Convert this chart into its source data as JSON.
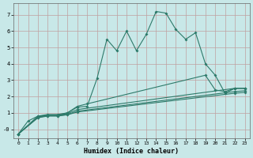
{
  "xlabel": "Humidex (Indice chaleur)",
  "bg_color": "#c8e8e8",
  "line_color": "#2d7a6a",
  "grid_color": "#c0a0a0",
  "xlim": [
    -0.5,
    23.5
  ],
  "ylim": [
    -0.55,
    7.7
  ],
  "xticks": [
    0,
    1,
    2,
    3,
    4,
    5,
    6,
    7,
    8,
    9,
    10,
    11,
    12,
    13,
    14,
    15,
    16,
    17,
    18,
    19,
    20,
    21,
    22,
    23
  ],
  "yticks": [
    0,
    1,
    2,
    3,
    4,
    5,
    6,
    7
  ],
  "ytick_labels": [
    "-0",
    "1",
    "2",
    "3",
    "4",
    "5",
    "6",
    "7"
  ],
  "lines": [
    {
      "x": [
        0,
        1,
        2,
        3,
        4,
        5,
        6,
        7,
        8,
        9,
        10,
        11,
        12,
        13,
        14,
        15,
        16,
        17,
        18,
        19,
        20,
        21,
        22,
        23
      ],
      "y": [
        -0.3,
        0.5,
        0.8,
        0.85,
        0.85,
        1.0,
        1.35,
        1.4,
        3.1,
        5.5,
        4.8,
        6.0,
        4.8,
        5.8,
        7.2,
        7.1,
        6.1,
        5.5,
        5.9,
        4.0,
        3.3,
        2.2,
        2.5,
        2.5
      ]
    },
    {
      "x": [
        0,
        2,
        3,
        4,
        5,
        6,
        7,
        19,
        20,
        21,
        22,
        23
      ],
      "y": [
        -0.3,
        0.8,
        0.9,
        0.9,
        1.0,
        1.4,
        1.55,
        3.3,
        2.4,
        2.3,
        2.5,
        2.5
      ]
    },
    {
      "x": [
        0,
        2,
        3,
        4,
        5,
        6,
        22,
        23
      ],
      "y": [
        -0.3,
        0.75,
        0.85,
        0.85,
        0.95,
        1.2,
        2.5,
        2.5
      ]
    },
    {
      "x": [
        0,
        2,
        3,
        4,
        5,
        6,
        22,
        23
      ],
      "y": [
        -0.3,
        0.72,
        0.82,
        0.82,
        0.9,
        1.1,
        2.3,
        2.35
      ]
    },
    {
      "x": [
        0,
        2,
        3,
        4,
        5,
        6,
        22,
        23
      ],
      "y": [
        -0.3,
        0.7,
        0.8,
        0.8,
        0.88,
        1.05,
        2.2,
        2.25
      ]
    }
  ]
}
